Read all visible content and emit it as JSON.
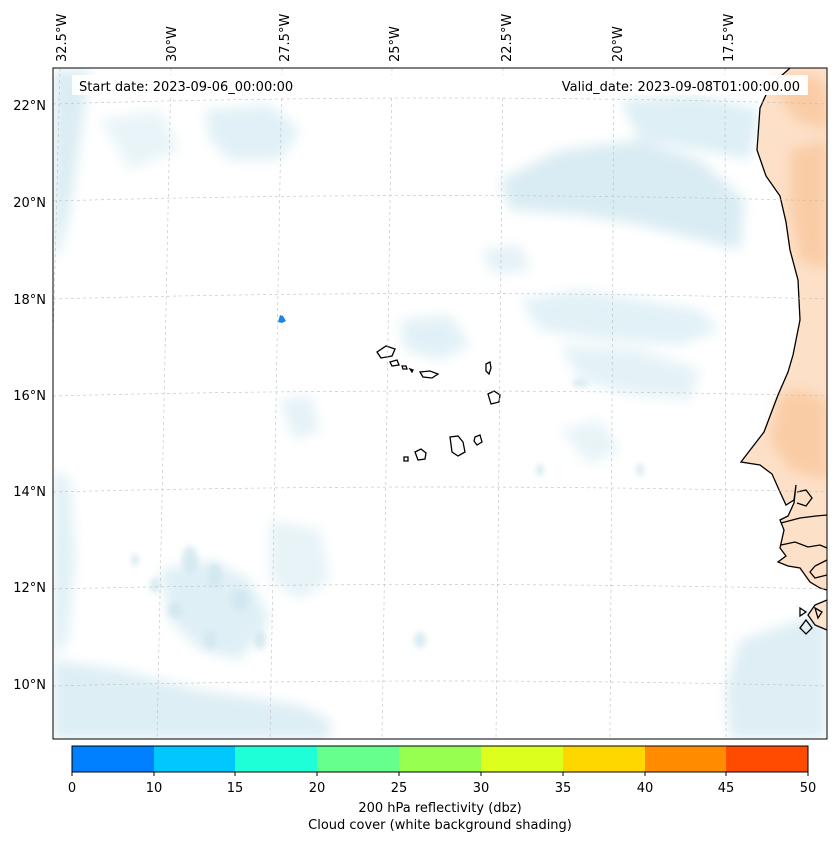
{
  "map": {
    "start_date": "Start date: 2023-09-06_00:00:00",
    "valid_date": "Valid_date: 2023-09-08T01:00:00.00",
    "lon_labels": [
      "32.5°W",
      "30°W",
      "27.5°W",
      "25°W",
      "22.5°W",
      "20°W",
      "17.5°W"
    ],
    "lat_labels": [
      "22°N",
      "20°N",
      "18°N",
      "16°N",
      "14°N",
      "12°N",
      "10°N"
    ],
    "land_color": "#fde0c8",
    "cloud_color": "#d6ebf2",
    "marker_color": "#1a86e8"
  },
  "colorbar": {
    "ticks": [
      "0",
      "10",
      "15",
      "20",
      "25",
      "30",
      "35",
      "40",
      "45",
      "50"
    ],
    "colors": [
      "#0080ff",
      "#00c8ff",
      "#1effd8",
      "#64ff8c",
      "#96ff50",
      "#dcff1e",
      "#ffd700",
      "#ff8c00",
      "#ff4b00"
    ],
    "label1": "200 hPa reflectivity (dbz)",
    "label2": "Cloud cover (white background shading)"
  }
}
